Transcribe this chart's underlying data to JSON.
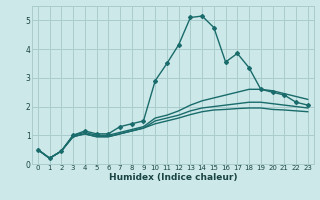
{
  "title": "",
  "xlabel": "Humidex (Indice chaleur)",
  "ylabel": "",
  "bg_color": "#cce8e8",
  "grid_color": "#aacccc",
  "line_color": "#1a6b6b",
  "xlim": [
    -0.5,
    23.5
  ],
  "ylim": [
    0,
    5.5
  ],
  "xticks": [
    0,
    1,
    2,
    3,
    4,
    5,
    6,
    7,
    8,
    9,
    10,
    11,
    12,
    13,
    14,
    15,
    16,
    17,
    18,
    19,
    20,
    21,
    22,
    23
  ],
  "yticks": [
    0,
    1,
    2,
    3,
    4,
    5
  ],
  "series": [
    {
      "x": [
        0,
        1,
        2,
        3,
        4,
        5,
        6,
        7,
        8,
        9,
        10,
        11,
        12,
        13,
        14,
        15,
        16,
        17,
        18,
        19,
        20,
        21,
        22,
        23
      ],
      "y": [
        0.5,
        0.2,
        0.45,
        1.0,
        1.15,
        1.05,
        1.05,
        1.3,
        1.4,
        1.5,
        2.9,
        3.5,
        4.15,
        5.1,
        5.15,
        4.75,
        3.55,
        3.85,
        3.35,
        2.6,
        2.5,
        2.4,
        2.15,
        2.05
      ],
      "marker": true
    },
    {
      "x": [
        0,
        1,
        2,
        3,
        4,
        5,
        6,
        7,
        8,
        9,
        10,
        11,
        12,
        13,
        14,
        15,
        16,
        17,
        18,
        19,
        20,
        21,
        22,
        23
      ],
      "y": [
        0.5,
        0.2,
        0.45,
        1.0,
        1.1,
        1.0,
        1.0,
        1.1,
        1.2,
        1.3,
        1.6,
        1.7,
        1.85,
        2.05,
        2.2,
        2.3,
        2.4,
        2.5,
        2.6,
        2.6,
        2.55,
        2.45,
        2.35,
        2.25
      ],
      "marker": false
    },
    {
      "x": [
        0,
        1,
        2,
        3,
        4,
        5,
        6,
        7,
        8,
        9,
        10,
        11,
        12,
        13,
        14,
        15,
        16,
        17,
        18,
        19,
        20,
        21,
        22,
        23
      ],
      "y": [
        0.5,
        0.2,
        0.45,
        0.95,
        1.05,
        0.95,
        0.95,
        1.05,
        1.15,
        1.25,
        1.5,
        1.6,
        1.7,
        1.85,
        1.95,
        2.0,
        2.05,
        2.1,
        2.15,
        2.15,
        2.1,
        2.05,
        2.0,
        1.95
      ],
      "marker": false
    },
    {
      "x": [
        0,
        1,
        2,
        3,
        4,
        5,
        6,
        7,
        8,
        9,
        10,
        11,
        12,
        13,
        14,
        15,
        16,
        17,
        18,
        19,
        20,
        21,
        22,
        23
      ],
      "y": [
        0.5,
        0.2,
        0.45,
        0.95,
        1.05,
        0.95,
        0.95,
        1.05,
        1.15,
        1.25,
        1.4,
        1.5,
        1.6,
        1.72,
        1.82,
        1.88,
        1.9,
        1.93,
        1.95,
        1.95,
        1.9,
        1.88,
        1.85,
        1.82
      ],
      "marker": false
    }
  ]
}
